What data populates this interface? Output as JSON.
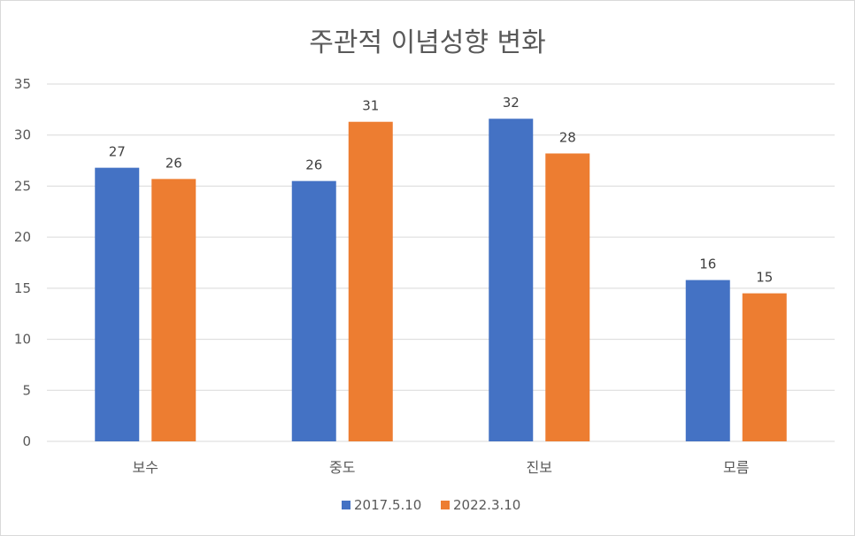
{
  "chart_data": {
    "type": "bar",
    "title": "주관적 이념성향 변화",
    "categories": [
      "보수",
      "중도",
      "진보",
      "모름"
    ],
    "series": [
      {
        "name": "2017.5.10",
        "color": "#4472c4",
        "values": [
          26.8,
          25.5,
          31.6,
          15.8
        ],
        "labels": [
          "27",
          "26",
          "32",
          "16"
        ]
      },
      {
        "name": "2022.3.10",
        "color": "#ed7d31",
        "values": [
          25.7,
          31.3,
          28.2,
          14.5
        ],
        "labels": [
          "26",
          "31",
          "28",
          "15"
        ]
      }
    ],
    "yticks": [
      "0",
      "5",
      "10",
      "15",
      "20",
      "25",
      "30",
      "35"
    ],
    "ylim": [
      0,
      35
    ],
    "grid": true,
    "legend_position": "bottom"
  }
}
